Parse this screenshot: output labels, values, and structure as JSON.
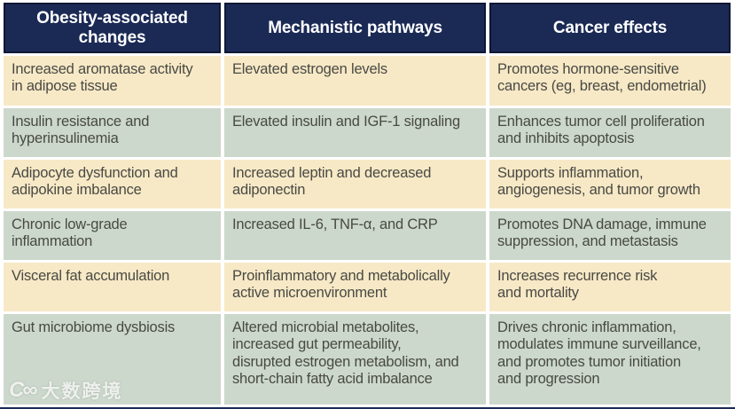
{
  "table": {
    "headers": [
      {
        "label": "Obesity-associated\nchanges"
      },
      {
        "label": "Mechanistic pathways"
      },
      {
        "label": "Cancer effects"
      }
    ],
    "rows": [
      {
        "change": "Increased aromatase activity\nin adipose tissue",
        "pathway": "Elevated estrogen levels",
        "effect": "Promotes hormone-sensitive\ncancers (eg, breast, endometrial)"
      },
      {
        "change": "Insulin resistance and\nhyperinsulinemia",
        "pathway": "Elevated insulin and IGF-1 signaling",
        "effect": "Enhances tumor cell proliferation\nand inhibits apoptosis"
      },
      {
        "change": "Adipocyte dysfunction and\nadipokine imbalance",
        "pathway": "Increased leptin and decreased\nadiponectin",
        "effect": "Supports inflammation,\nangiogenesis, and tumor growth"
      },
      {
        "change": "Chronic low-grade\ninflammation",
        "pathway": "Increased IL-6, TNF-α, and CRP",
        "effect": "Promotes DNA damage, immune\nsuppression, and metastasis"
      },
      {
        "change": "Visceral fat accumulation",
        "pathway": "Proinflammatory and metabolically\nactive microenvironment",
        "effect": "Increases recurrence risk\nand mortality"
      },
      {
        "change": "Gut microbiome dysbiosis",
        "pathway": "Altered microbial metabolites,\nincreased gut permeability,\ndisrupted estrogen metabolism, and\nshort-chain fatty acid imbalance",
        "effect": "Drives chronic inflammation,\nmodulates immune surveillance,\nand promotes tumor initiation\nand progression"
      }
    ]
  },
  "watermark": {
    "logo": "C∞",
    "text": "大数跨境"
  },
  "colors": {
    "header_bg": "#1b2a55",
    "header_border": "#0f1734",
    "row_cream": "#f7e9c6",
    "row_sage": "#ccd8cc",
    "body_text": "#494944",
    "header_text": "#ffffff"
  }
}
